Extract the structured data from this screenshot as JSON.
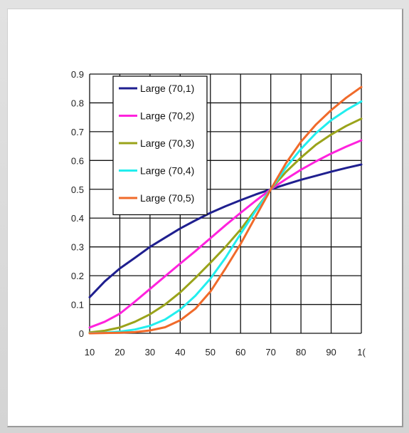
{
  "chart_data": {
    "type": "line",
    "title": "",
    "xlabel": "",
    "ylabel": "",
    "xlim": [
      10,
      100
    ],
    "ylim": [
      0,
      0.9
    ],
    "grid": true,
    "legend_position": "top-left",
    "x_tick_labels": [
      "10",
      "20",
      "30",
      "40",
      "50",
      "60",
      "70",
      "80",
      "90",
      "1("
    ],
    "y_tick_labels": [
      "0",
      "0.1",
      "0.2",
      "0.3",
      "0.4",
      "0.5",
      "0.6",
      "0.7",
      "0.8",
      "0.9"
    ],
    "x": [
      10,
      15,
      20,
      25,
      30,
      35,
      40,
      45,
      50,
      55,
      60,
      65,
      70,
      75,
      80,
      85,
      90,
      95,
      100
    ],
    "series": [
      {
        "name": "Large (70,1)",
        "color": "#1f1f8f",
        "values": [
          0.125,
          0.18,
          0.225,
          0.262,
          0.3,
          0.332,
          0.364,
          0.392,
          0.418,
          0.441,
          0.462,
          0.482,
          0.5,
          0.517,
          0.533,
          0.547,
          0.561,
          0.574,
          0.586
        ]
      },
      {
        "name": "Large (70,2)",
        "color": "#ff22dd",
        "values": [
          0.02,
          0.04,
          0.068,
          0.11,
          0.154,
          0.198,
          0.242,
          0.285,
          0.33,
          0.375,
          0.418,
          0.46,
          0.5,
          0.535,
          0.568,
          0.597,
          0.624,
          0.648,
          0.67
        ]
      },
      {
        "name": "Large (70,3)",
        "color": "#9aa31a",
        "values": [
          0.003,
          0.009,
          0.02,
          0.04,
          0.066,
          0.1,
          0.142,
          0.192,
          0.245,
          0.3,
          0.36,
          0.43,
          0.5,
          0.56,
          0.61,
          0.655,
          0.69,
          0.72,
          0.745
        ]
      },
      {
        "name": "Large (70,4)",
        "color": "#22eeee",
        "values": [
          0.001,
          0.002,
          0.006,
          0.013,
          0.026,
          0.048,
          0.082,
          0.13,
          0.19,
          0.262,
          0.345,
          0.425,
          0.5,
          0.575,
          0.64,
          0.695,
          0.74,
          0.775,
          0.805
        ]
      },
      {
        "name": "Large (70,5)",
        "color": "#f06a2a",
        "values": [
          0.0,
          0.001,
          0.002,
          0.004,
          0.01,
          0.021,
          0.045,
          0.085,
          0.145,
          0.225,
          0.31,
          0.405,
          0.5,
          0.59,
          0.665,
          0.725,
          0.775,
          0.818,
          0.855
        ]
      }
    ]
  }
}
